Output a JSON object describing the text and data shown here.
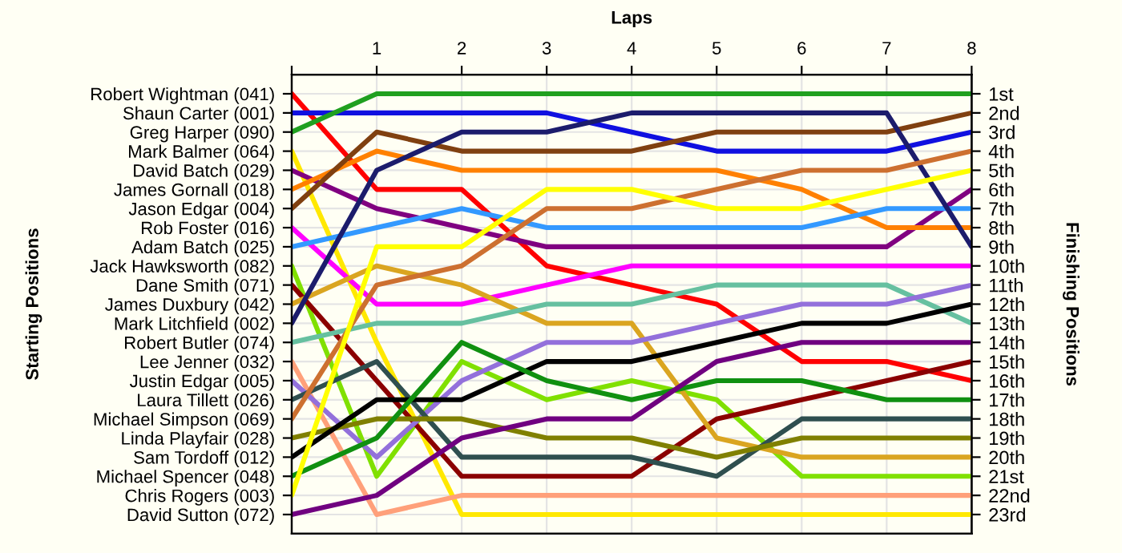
{
  "chart_data": {
    "type": "line",
    "xlabel": "Laps",
    "annotations": [
      "Starting Positions"
    ],
    "y2label": "Finishing Positions",
    "xlim": [
      0,
      8
    ],
    "xticks": [
      {
        "value": 0,
        "label": null
      },
      1,
      2,
      3,
      4,
      5,
      6,
      7,
      8
    ],
    "y2lim": [
      24,
      0
    ],
    "grid": true,
    "y_categories": [
      "Robert Wightman (041)",
      "Shaun Carter (001)",
      "Greg Harper (090)",
      "Mark Balmer (064)",
      "David Batch (029)",
      "James Gornall (018)",
      "Jason Edgar (004)",
      "Rob Foster (016)",
      "Adam Batch (025)",
      "Jack Hawksworth (082)",
      "Dane Smith (071)",
      "James Duxbury (042)",
      "Mark Litchfield (002)",
      "Robert Butler (074)",
      "Lee Jenner (032)",
      "Justin Edgar (005)",
      "Laura Tillett (026)",
      "Michael Simpson (069)",
      "Linda Playfair (028)",
      "Sam Tordoff (012)",
      "Michael Spencer (048)",
      "Chris Rogers (003)",
      "David Sutton (072)"
    ],
    "y2ticks": [
      {
        "value": 1,
        "label": "1st"
      },
      {
        "value": 2,
        "label": "2nd"
      },
      {
        "value": 3,
        "label": "3rd"
      },
      {
        "value": 4,
        "label": "4th"
      },
      {
        "value": 5,
        "label": "5th"
      },
      {
        "value": 6,
        "label": "6th"
      },
      {
        "value": 7,
        "label": "7th"
      },
      {
        "value": 8,
        "label": "8th"
      },
      {
        "value": 9,
        "label": "9th"
      },
      {
        "value": 10,
        "label": "10th"
      },
      {
        "value": 11,
        "label": "11th"
      },
      {
        "value": 12,
        "label": "12th"
      },
      {
        "value": 13,
        "label": "13th"
      },
      {
        "value": 14,
        "label": "14th"
      },
      {
        "value": 15,
        "label": "15th"
      },
      {
        "value": 16,
        "label": "16th"
      },
      {
        "value": 17,
        "label": "17th"
      },
      {
        "value": 18,
        "label": "18th"
      },
      {
        "value": 19,
        "label": "19th"
      },
      {
        "value": 20,
        "label": "20th"
      },
      {
        "value": 21,
        "label": "21st"
      },
      {
        "value": 22,
        "label": "22nd"
      },
      {
        "value": 23,
        "label": "23rd"
      }
    ],
    "x": [
      0,
      1,
      2,
      3,
      4,
      5,
      6,
      7,
      8
    ],
    "series": [
      {
        "axis": "y2",
        "color": "#ff0000",
        "values": [
          1,
          6,
          6,
          10,
          11,
          12,
          15,
          15,
          16
        ]
      },
      {
        "axis": "y2",
        "color": "#1010e0",
        "values": [
          2,
          2,
          2,
          2,
          3,
          4,
          4,
          4,
          3
        ]
      },
      {
        "axis": "y2",
        "color": "#20a020",
        "values": [
          3,
          1,
          1,
          1,
          1,
          1,
          1,
          1,
          1
        ]
      },
      {
        "axis": "y2",
        "color": "#ffe800",
        "values": [
          4,
          14,
          23,
          23,
          23,
          23,
          23,
          23,
          23
        ]
      },
      {
        "axis": "y2",
        "color": "#800080",
        "values": [
          5,
          7,
          8,
          9,
          9,
          9,
          9,
          9,
          6
        ]
      },
      {
        "axis": "y2",
        "color": "#ff8000",
        "values": [
          6,
          4,
          5,
          5,
          5,
          5,
          6,
          8,
          8
        ]
      },
      {
        "axis": "y2",
        "color": "#804010",
        "values": [
          7,
          3,
          4,
          4,
          4,
          3,
          3,
          3,
          2
        ]
      },
      {
        "axis": "y2",
        "color": "#ff00ff",
        "values": [
          8,
          12,
          12,
          11,
          10,
          10,
          10,
          10,
          10
        ]
      },
      {
        "axis": "y2",
        "color": "#3399ff",
        "values": [
          9,
          8,
          7,
          8,
          8,
          8,
          8,
          7,
          7
        ]
      },
      {
        "axis": "y2",
        "color": "#80e000",
        "values": [
          10,
          21,
          15,
          17,
          16,
          17,
          21,
          21,
          21
        ]
      },
      {
        "axis": "y2",
        "color": "#8b0000",
        "values": [
          11,
          16,
          21,
          21,
          21,
          18,
          17,
          16,
          15
        ]
      },
      {
        "axis": "y2",
        "color": "#daa520",
        "values": [
          12,
          10,
          11,
          13,
          13,
          19,
          20,
          20,
          20
        ]
      },
      {
        "axis": "y2",
        "color": "#1c1c6c",
        "values": [
          13,
          5,
          3,
          3,
          2,
          2,
          2,
          2,
          9
        ]
      },
      {
        "axis": "y2",
        "color": "#66c0a0",
        "values": [
          14,
          13,
          13,
          12,
          12,
          11,
          11,
          11,
          13
        ]
      },
      {
        "axis": "y2",
        "color": "#ffa07a",
        "values": [
          15,
          23,
          22,
          22,
          22,
          22,
          22,
          22,
          22
        ]
      },
      {
        "axis": "y2",
        "color": "#9370db",
        "values": [
          16,
          20,
          16,
          14,
          14,
          13,
          12,
          12,
          11
        ]
      },
      {
        "axis": "y2",
        "color": "#2f4f4f",
        "values": [
          17,
          15,
          20,
          20,
          20,
          21,
          18,
          18,
          18
        ]
      },
      {
        "axis": "y2",
        "color": "#cd7030",
        "values": [
          18,
          11,
          10,
          7,
          7,
          6,
          5,
          5,
          4
        ]
      },
      {
        "axis": "y2",
        "color": "#808000",
        "values": [
          19,
          18,
          18,
          19,
          19,
          20,
          19,
          19,
          19
        ]
      },
      {
        "axis": "y2",
        "color": "#000000",
        "values": [
          20,
          17,
          17,
          15,
          15,
          14,
          13,
          13,
          12
        ]
      },
      {
        "axis": "y2",
        "color": "#109010",
        "values": [
          21,
          19,
          14,
          16,
          17,
          16,
          16,
          17,
          17
        ]
      },
      {
        "axis": "y2",
        "color": "#ffff00",
        "values": [
          22,
          9,
          9,
          6,
          6,
          7,
          7,
          6,
          5
        ]
      },
      {
        "axis": "y2",
        "color": "#700080",
        "values": [
          23,
          22,
          19,
          18,
          18,
          15,
          14,
          14,
          14
        ]
      }
    ]
  }
}
